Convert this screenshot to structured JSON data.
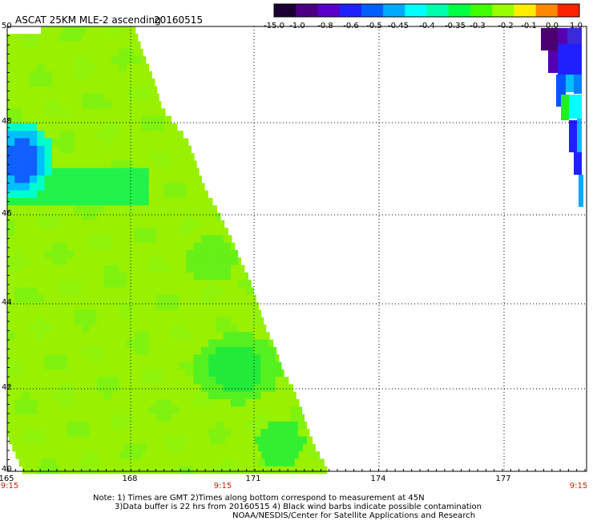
{
  "header": {
    "title": "ASCAT 25KM MLE-2 ascending",
    "date": "20160515"
  },
  "colorbar": {
    "labels": [
      "-15.0",
      "-1.0",
      "-0.8",
      "-0.6",
      "-0.5",
      "-0.45",
      "-0.4",
      "-0.35",
      "-0.3",
      "-0.2",
      "-0.1",
      "0.0",
      "1.0"
    ],
    "colors": [
      "#1a0033",
      "#4b0082",
      "#5b00c8",
      "#2020ff",
      "#0060ff",
      "#00aaff",
      "#00ffff",
      "#00ffaa",
      "#00ff40",
      "#40ff00",
      "#99ff00",
      "#ffee00",
      "#ff8800",
      "#ff2200"
    ]
  },
  "map": {
    "lat_labels": [
      "50",
      "48",
      "46",
      "44",
      "42",
      "40"
    ],
    "lon_labels": [
      "165",
      "168",
      "171",
      "174",
      "177"
    ],
    "time_labels": [
      "9:15",
      "9:15",
      "9:15"
    ]
  },
  "notes": {
    "line1": "Note: 1) Times are GMT 2)Times along bottom correspond to measurement at 45N",
    "line2": "3)Data buffer is 22 hrs from 20160515 4) Black wind barbs indicate possible contamination",
    "line3": "NOAA/NESDIS/Center for Satellite Applications and Research"
  }
}
